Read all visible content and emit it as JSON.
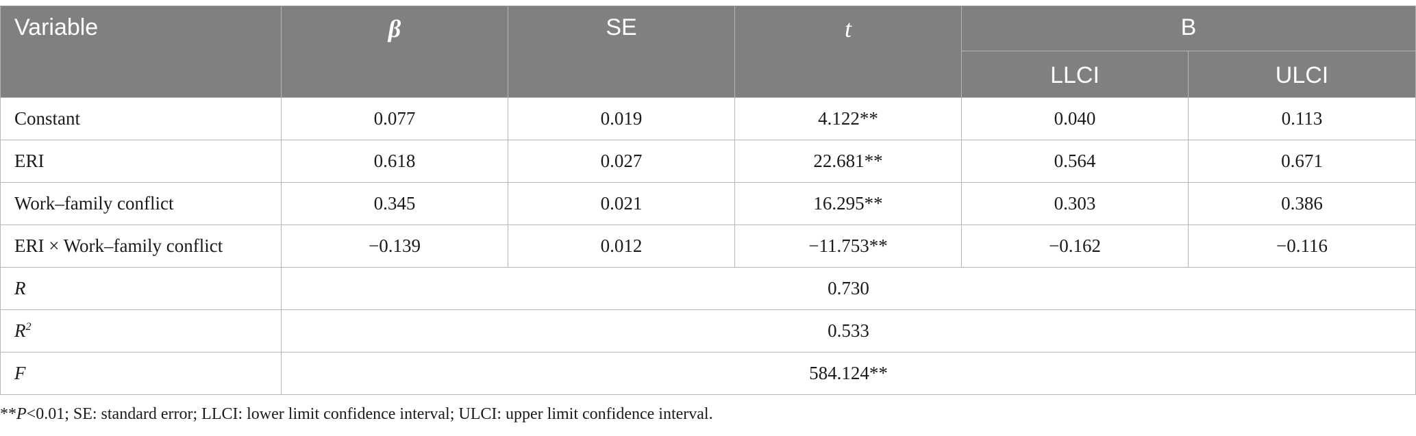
{
  "table": {
    "headers": {
      "variable": "Variable",
      "beta": "β",
      "se": "SE",
      "t": "t",
      "b_group": "B",
      "llci": "LLCI",
      "ulci": "ULCI"
    },
    "rows": [
      {
        "label": "Constant",
        "beta": "0.077",
        "se": "0.019",
        "t": "4.122**",
        "llci": "0.040",
        "ulci": "0.113"
      },
      {
        "label": "ERI",
        "beta": "0.618",
        "se": "0.027",
        "t": "22.681**",
        "llci": "0.564",
        "ulci": "0.671"
      },
      {
        "label": "Work–family conflict",
        "beta": "0.345",
        "se": "0.021",
        "t": "16.295**",
        "llci": "0.303",
        "ulci": "0.386"
      },
      {
        "label": "ERI × Work–family conflict",
        "beta": "−0.139",
        "se": "0.012",
        "t": "−11.753**",
        "llci": "−0.162",
        "ulci": "−0.116"
      }
    ],
    "summary": [
      {
        "label": "R",
        "value": "0.730"
      },
      {
        "label": "R",
        "sup": "2",
        "value": "0.533"
      },
      {
        "label": "F",
        "value": "584.124**"
      }
    ]
  },
  "footnote": {
    "prefix": "**",
    "p": "P",
    "rest": "<0.01; SE: standard error; LLCI: lower limit confidence interval; ULCI: upper limit confidence interval."
  }
}
